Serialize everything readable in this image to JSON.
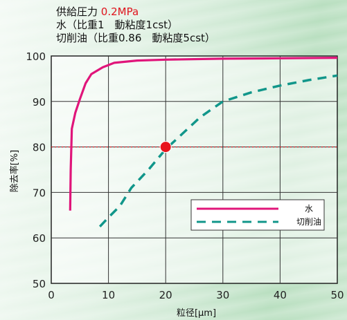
{
  "header": {
    "pressure_label": "供給圧力 ",
    "pressure_value": "0.2MPa",
    "water_line": "水（比重1　動粘度1cst）",
    "oil_line": "切削油（比重0.86　動粘度5cst）"
  },
  "colors": {
    "water": "#e0157a",
    "oil": "#11968a",
    "reference": "#e0141e",
    "marker": "#e8141c"
  },
  "chart_data": {
    "type": "line",
    "xlabel": "粒径[μm]",
    "ylabel": "除去率[%]",
    "xlim": [
      0,
      50
    ],
    "ylim": [
      50,
      100
    ],
    "x_ticks": [
      "0",
      "10",
      "20",
      "30",
      "40",
      "50"
    ],
    "y_ticks": [
      "50",
      "60",
      "70",
      "80",
      "90",
      "100"
    ],
    "grid": true,
    "legend_position": "lower-right",
    "series": [
      {
        "name": "水",
        "style": "solid",
        "points": [
          [
            3.3,
            66
          ],
          [
            3.4,
            75
          ],
          [
            3.6,
            84
          ],
          [
            4.2,
            87.5
          ],
          [
            5,
            90.5
          ],
          [
            6,
            94
          ],
          [
            7,
            96
          ],
          [
            9,
            97.5
          ],
          [
            11,
            98.5
          ],
          [
            15,
            99
          ],
          [
            20,
            99.2
          ],
          [
            30,
            99.4
          ],
          [
            40,
            99.5
          ],
          [
            50,
            99.6
          ]
        ]
      },
      {
        "name": "切削油",
        "style": "dashed",
        "points": [
          [
            8.5,
            62.5
          ],
          [
            10,
            64.5
          ],
          [
            12,
            67
          ],
          [
            14,
            71
          ],
          [
            17,
            75
          ],
          [
            20,
            79.5
          ],
          [
            23,
            83
          ],
          [
            26,
            86.5
          ],
          [
            30,
            90
          ],
          [
            35,
            92
          ],
          [
            40,
            93.5
          ],
          [
            45,
            94.7
          ],
          [
            50,
            95.7
          ]
        ]
      }
    ],
    "reference_line": {
      "y": 80,
      "style": "dotted"
    },
    "marker": {
      "x": 20,
      "y": 80
    }
  }
}
